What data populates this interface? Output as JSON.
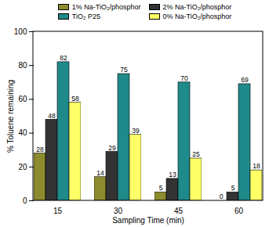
{
  "chart_data": {
    "type": "bar",
    "x_label": "Sampling Time (min)",
    "y_label": "% Toluene remaining",
    "categories": [
      15,
      30,
      45,
      60
    ],
    "series": [
      {
        "name": "1% Na-TiO₂/phosphor",
        "color": "#8c8c2e",
        "values": [
          28,
          14,
          5,
          0
        ]
      },
      {
        "name": "2% Na-TiO₂/phosphor",
        "color": "#333333",
        "values": [
          48,
          29,
          13,
          5
        ]
      },
      {
        "name": "TiO₂ P25",
        "color": "#1f8a8a",
        "values": [
          82,
          75,
          70,
          69
        ]
      },
      {
        "name": "0% Na-TiO₂/phosphor",
        "color": "#ffff66",
        "values": [
          58,
          39,
          25,
          18
        ]
      }
    ],
    "ylim": [
      0,
      100
    ],
    "yticks": [
      0,
      20,
      40,
      60,
      80,
      100
    ],
    "data_labels": true,
    "legend": "top",
    "grid": false
  }
}
